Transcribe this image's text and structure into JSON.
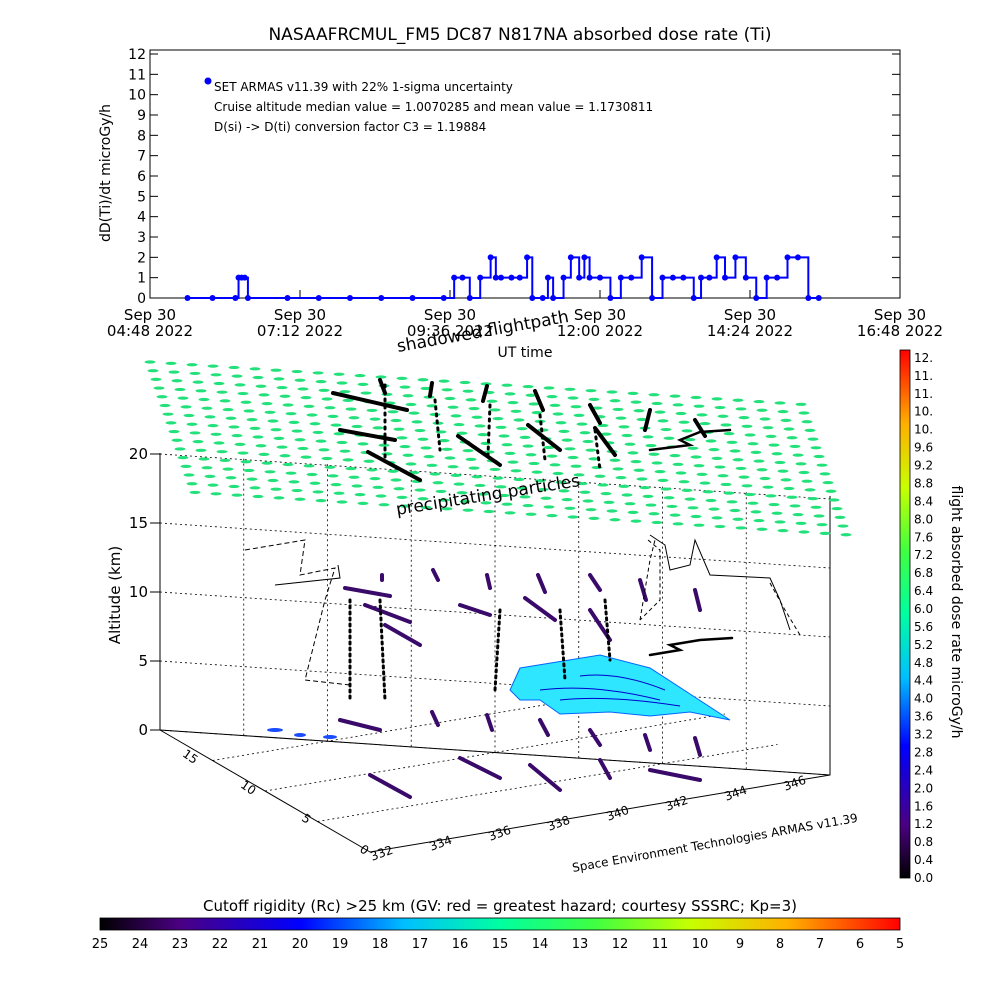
{
  "title": "NASAAFRCMUL_FM5 DC87 N817NA absorbed dose rate (Ti)",
  "top_chart": {
    "ylabel": "dD(Ti)/dt microGy/h",
    "y_ticks": [
      "0",
      "1",
      "2",
      "3",
      "4",
      "5",
      "6",
      "7",
      "8",
      "9",
      "10",
      "11",
      "12"
    ],
    "x_tick_labels": [
      {
        "line1": "Sep 30",
        "line2": "04:48 2022"
      },
      {
        "line1": "Sep 30",
        "line2": "07:12 2022"
      },
      {
        "line1": "Sep 30",
        "line2": "09:36 2022"
      },
      {
        "line1": "Sep 30",
        "line2": "12:00 2022"
      },
      {
        "line1": "Sep 30",
        "line2": "14:24 2022"
      },
      {
        "line1": "Sep 30",
        "line2": "16:48 2022"
      }
    ],
    "xlabel": "UT time",
    "legend": "SET ARMAS v11.39 with 22% 1-sigma uncertainty",
    "note1": "Cruise altitude median value = 1.0070285 and mean value = 1.1730811",
    "note2": "D(si) -> D(ti) conversion factor C3 = 1.19884",
    "marker_color": "#0000ff"
  },
  "chart_data": [
    {
      "type": "line",
      "title": "NASAAFRCMUL_FM5 DC87 N817NA absorbed dose rate (Ti)",
      "xlabel": "UT time",
      "ylabel": "dD(Ti)/dt microGy/h",
      "xlim": [
        "2022-09-30 04:48",
        "2022-09-30 16:48"
      ],
      "ylim": [
        0,
        12
      ],
      "grid": false,
      "series": [
        {
          "name": "SET ARMAS v11.39 with 22% 1-sigma uncertainty",
          "x": [
            "2022-09-30 05:24",
            "2022-09-30 05:48",
            "2022-09-30 06:10",
            "2022-09-30 06:13",
            "2022-09-30 06:16",
            "2022-09-30 06:19",
            "2022-09-30 06:22",
            "2022-09-30 07:00",
            "2022-09-30 07:30",
            "2022-09-30 08:00",
            "2022-09-30 08:30",
            "2022-09-30 09:00",
            "2022-09-30 09:30",
            "2022-09-30 09:40",
            "2022-09-30 09:48",
            "2022-09-30 09:55",
            "2022-09-30 10:05",
            "2022-09-30 10:15",
            "2022-09-30 10:20",
            "2022-09-30 10:25",
            "2022-09-30 10:35",
            "2022-09-30 10:43",
            "2022-09-30 10:50",
            "2022-09-30 10:55",
            "2022-09-30 11:05",
            "2022-09-30 11:10",
            "2022-09-30 11:15",
            "2022-09-30 11:25",
            "2022-09-30 11:32",
            "2022-09-30 11:40",
            "2022-09-30 11:45",
            "2022-09-30 11:50",
            "2022-09-30 12:00",
            "2022-09-30 12:10",
            "2022-09-30 12:20",
            "2022-09-30 12:30",
            "2022-09-30 12:40",
            "2022-09-30 12:50",
            "2022-09-30 13:00",
            "2022-09-30 13:10",
            "2022-09-30 13:20",
            "2022-09-30 13:30",
            "2022-09-30 13:37",
            "2022-09-30 13:45",
            "2022-09-30 13:52",
            "2022-09-30 14:00",
            "2022-09-30 14:10",
            "2022-09-30 14:20",
            "2022-09-30 14:30",
            "2022-09-30 14:40",
            "2022-09-30 14:50",
            "2022-09-30 15:00",
            "2022-09-30 15:10",
            "2022-09-30 15:20",
            "2022-09-30 15:30"
          ],
          "values": [
            0,
            0,
            0,
            1,
            1,
            1,
            0,
            0,
            0,
            0,
            0,
            0,
            0,
            1,
            1,
            0,
            1,
            2,
            1,
            1,
            1,
            1,
            2,
            0,
            0,
            1,
            0,
            1,
            2,
            1,
            2,
            1,
            1,
            0,
            1,
            1,
            2,
            0,
            1,
            1,
            1,
            0,
            1,
            1,
            2,
            1,
            2,
            1,
            0,
            1,
            1,
            2,
            2,
            0,
            0
          ]
        }
      ]
    },
    {
      "type": "scatter",
      "subtype": "3d flight path with cutoff rigidity surface",
      "annotations": [
        "shadowed flightpath",
        "precipitating particles",
        "Space Environment Technologies ARMAS v11.39"
      ],
      "zlabel": "Altitude (km)",
      "zlim": [
        0,
        20
      ],
      "z_ticks": [
        0,
        5,
        10,
        15,
        20
      ],
      "lon_ticks": [
        "332",
        "334",
        "336",
        "338",
        "340",
        "342",
        "344",
        "346"
      ],
      "lat_ticks": [
        "0",
        "5",
        "10",
        "15"
      ],
      "colorbar": {
        "label": "flight absorbed dose rate microGy/h",
        "ticks": [
          "0.0",
          "0.4",
          "0.8",
          "1.2",
          "1.6",
          "2.0",
          "2.4",
          "2.8",
          "3.2",
          "3.6",
          "4.0",
          "4.4",
          "4.8",
          "5.2",
          "5.6",
          "6.0",
          "6.4",
          "6.8",
          "7.2",
          "7.6",
          "8.0",
          "8.4",
          "8.8",
          "9.2",
          "9.6",
          "10.",
          "10.",
          "11.",
          "11.",
          "12."
        ],
        "range": [
          0,
          12
        ]
      },
      "rigidity_bar": {
        "label": "Cutoff rigidity (Rc) >25 km (GV: red = greatest hazard; courtesy SSSRC; Kp=3)",
        "ticks": [
          "25",
          "24",
          "23",
          "22",
          "21",
          "20",
          "19",
          "18",
          "17",
          "16",
          "15",
          "14",
          "13",
          "12",
          "11",
          "10",
          "9",
          "8",
          "7",
          "6",
          "5"
        ],
        "range": [
          25,
          5
        ]
      }
    }
  ],
  "three_d": {
    "shadow_label": "shadowed flightpath",
    "precip_label": "precipitating particles",
    "credit": "Space Environment Technologies ARMAS v11.39",
    "z_axis_label": "Altitude (km)",
    "z_ticks": [
      "0",
      "5",
      "10",
      "15",
      "20"
    ],
    "lon_ticks": [
      "332",
      "334",
      "336",
      "338",
      "340",
      "342",
      "344",
      "346"
    ],
    "lat_ticks": [
      "0",
      "5",
      "10",
      "15"
    ],
    "cyan_color": "#2ee6ff",
    "green_color": "#22e07a",
    "path_color": "#3a0a6a"
  },
  "right_colorbar": {
    "label": "flight absorbed dose rate microGy/h",
    "ticks": [
      "0.0",
      "0.4",
      "0.8",
      "1.2",
      "1.6",
      "2.0",
      "2.4",
      "2.8",
      "3.2",
      "3.6",
      "4.0",
      "4.4",
      "4.8",
      "5.2",
      "5.6",
      "6.0",
      "6.4",
      "6.8",
      "7.2",
      "7.6",
      "8.0",
      "8.4",
      "8.8",
      "9.2",
      "9.6",
      "10.",
      "10.",
      "11.",
      "11.",
      "12."
    ]
  },
  "bottom_colorbar": {
    "label": "Cutoff rigidity (Rc) >25 km (GV: red = greatest hazard; courtesy SSSRC; Kp=3)",
    "ticks": [
      "25",
      "24",
      "23",
      "22",
      "21",
      "20",
      "19",
      "18",
      "17",
      "16",
      "15",
      "14",
      "13",
      "12",
      "11",
      "10",
      "9",
      "8",
      "7",
      "6",
      "5"
    ]
  }
}
